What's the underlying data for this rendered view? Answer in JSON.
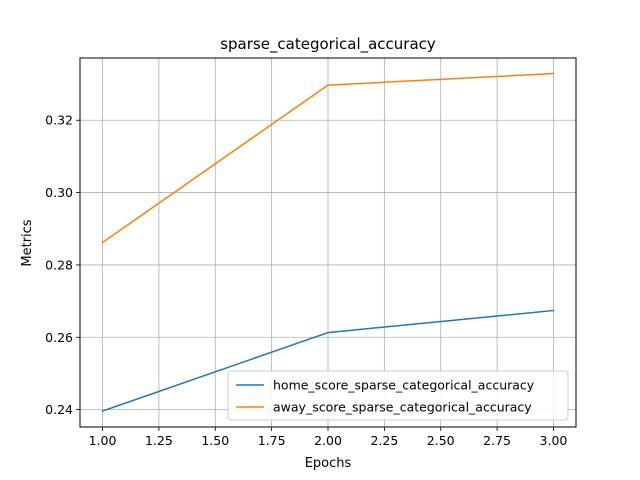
{
  "chart_data": {
    "type": "line",
    "title": "sparse_categorical_accuracy",
    "xlabel": "Epochs",
    "ylabel": "Metrics",
    "x": [
      1.0,
      2.0,
      3.0
    ],
    "xlim": [
      0.9,
      3.1
    ],
    "ylim": [
      0.2352,
      0.3372
    ],
    "xticks": [
      1.0,
      1.25,
      1.5,
      1.75,
      2.0,
      2.25,
      2.5,
      2.75,
      3.0
    ],
    "xtick_labels": [
      "1.00",
      "1.25",
      "1.50",
      "1.75",
      "2.00",
      "2.25",
      "2.50",
      "2.75",
      "3.00"
    ],
    "yticks": [
      0.24,
      0.26,
      0.28,
      0.3,
      0.32
    ],
    "ytick_labels": [
      "0.24",
      "0.26",
      "0.28",
      "0.30",
      "0.32"
    ],
    "grid": true,
    "legend_position": "lower-right",
    "series": [
      {
        "name": "home_score_sparse_categorical_accuracy",
        "color": "#1f77b4",
        "values": [
          0.2396,
          0.2613,
          0.2674
        ]
      },
      {
        "name": "away_score_sparse_categorical_accuracy",
        "color": "#ff7f0e",
        "values": [
          0.2862,
          0.3297,
          0.3329
        ]
      }
    ]
  }
}
